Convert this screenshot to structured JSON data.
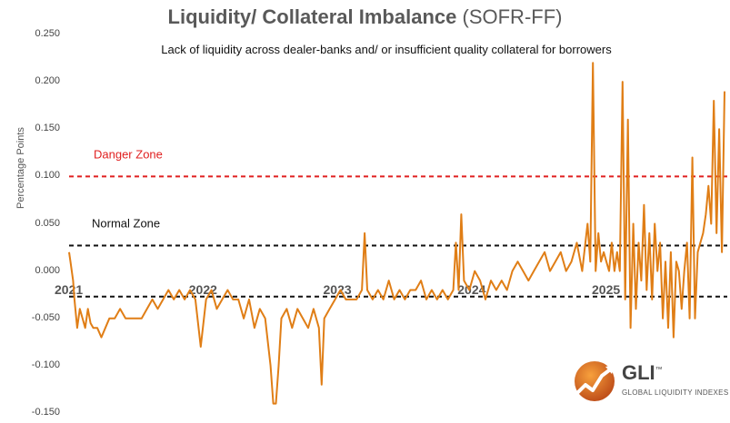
{
  "title": {
    "bold": "Liquidity/ Collateral Imbalance",
    "normal": "(SOFR-FF)"
  },
  "subtitle": "Lack of liquidity across dealer-banks and/ or insufficient quality collateral for borrowers",
  "colors": {
    "series": "#e07e16",
    "danger": "#e02020",
    "normal": "#111111"
  },
  "logo": {
    "name": "GLI",
    "tm": "™",
    "tagline": "GLOBAL LIQUIDITY INDEXES"
  },
  "chart_data": {
    "type": "line",
    "title": "Liquidity/ Collateral Imbalance (SOFR-FF)",
    "subtitle": "Lack of liquidity across dealer-banks and/ or insufficient quality collateral for borrowers",
    "ylabel": "Percentage Points",
    "xlabel": "",
    "ylim": [
      -0.15,
      0.25
    ],
    "xlim": [
      2021.0,
      2025.9
    ],
    "y_ticks": [
      "0.250",
      "0.200",
      "0.150",
      "0.100",
      "0.050",
      "0.000",
      "-0.050",
      "-0.100",
      "-0.150"
    ],
    "x_ticks": [
      "2021",
      "2022",
      "2023",
      "2024",
      "2025"
    ],
    "grid": false,
    "legend": "none",
    "reference_lines": [
      {
        "label": "Danger Zone",
        "y": 0.1,
        "style": "dashed",
        "color": "#e02020"
      },
      {
        "label": "Normal Zone",
        "y": 0.027,
        "style": "dashed",
        "color": "#111111"
      },
      {
        "label": "",
        "y": -0.027,
        "style": "dashed",
        "color": "#111111"
      }
    ],
    "series": [
      {
        "values_x": [
          2021.0,
          2021.01,
          2021.03,
          2021.04,
          2021.06,
          2021.08,
          2021.1,
          2021.12,
          2021.14,
          2021.16,
          2021.18,
          2021.21,
          2021.24,
          2021.27,
          2021.3,
          2021.34,
          2021.38,
          2021.42,
          2021.46,
          2021.5,
          2021.54,
          2021.58,
          2021.62,
          2021.66,
          2021.7,
          2021.74,
          2021.78,
          2021.82,
          2021.86,
          2021.9,
          2021.94,
          2021.98,
          2022.02,
          2022.06,
          2022.1,
          2022.14,
          2022.18,
          2022.22,
          2022.26,
          2022.3,
          2022.34,
          2022.38,
          2022.42,
          2022.46,
          2022.5,
          2022.52,
          2022.54,
          2022.56,
          2022.58,
          2022.62,
          2022.66,
          2022.7,
          2022.74,
          2022.78,
          2022.82,
          2022.86,
          2022.88,
          2022.9,
          2022.94,
          2022.98,
          2023.02,
          2023.06,
          2023.1,
          2023.14,
          2023.18,
          2023.2,
          2023.22,
          2023.26,
          2023.3,
          2023.34,
          2023.38,
          2023.42,
          2023.46,
          2023.5,
          2023.54,
          2023.58,
          2023.62,
          2023.66,
          2023.7,
          2023.74,
          2023.78,
          2023.82,
          2023.86,
          2023.88,
          2023.9,
          2023.92,
          2023.94,
          2023.98,
          2024.02,
          2024.06,
          2024.1,
          2024.14,
          2024.18,
          2024.22,
          2024.26,
          2024.3,
          2024.34,
          2024.38,
          2024.42,
          2024.46,
          2024.5,
          2024.54,
          2024.58,
          2024.62,
          2024.66,
          2024.7,
          2024.74,
          2024.78,
          2024.82,
          2024.86,
          2024.88,
          2024.9,
          2024.92,
          2024.94,
          2024.96,
          2024.98,
          2025.0,
          2025.02,
          2025.04,
          2025.06,
          2025.08,
          2025.1,
          2025.12,
          2025.14,
          2025.16,
          2025.18,
          2025.2,
          2025.22,
          2025.24,
          2025.26,
          2025.28,
          2025.3,
          2025.32,
          2025.34,
          2025.36,
          2025.38,
          2025.4,
          2025.42,
          2025.44,
          2025.46,
          2025.48,
          2025.5,
          2025.52,
          2025.54,
          2025.56,
          2025.58,
          2025.6,
          2025.62,
          2025.64,
          2025.66,
          2025.68,
          2025.7,
          2025.72,
          2025.74,
          2025.76,
          2025.78,
          2025.8,
          2025.82,
          2025.84,
          2025.86,
          2025.88
        ],
        "values": [
          0.02,
          0.01,
          -0.01,
          -0.03,
          -0.06,
          -0.04,
          -0.05,
          -0.06,
          -0.04,
          -0.055,
          -0.06,
          -0.06,
          -0.07,
          -0.06,
          -0.05,
          -0.05,
          -0.04,
          -0.05,
          -0.05,
          -0.05,
          -0.05,
          -0.04,
          -0.03,
          -0.04,
          -0.03,
          -0.02,
          -0.03,
          -0.02,
          -0.03,
          -0.02,
          -0.03,
          -0.08,
          -0.03,
          -0.02,
          -0.04,
          -0.03,
          -0.02,
          -0.03,
          -0.03,
          -0.05,
          -0.03,
          -0.06,
          -0.04,
          -0.05,
          -0.1,
          -0.14,
          -0.14,
          -0.1,
          -0.05,
          -0.04,
          -0.06,
          -0.04,
          -0.05,
          -0.06,
          -0.04,
          -0.06,
          -0.12,
          -0.05,
          -0.04,
          -0.03,
          -0.02,
          -0.03,
          -0.03,
          -0.03,
          -0.02,
          0.04,
          -0.02,
          -0.03,
          -0.02,
          -0.03,
          -0.01,
          -0.03,
          -0.02,
          -0.03,
          -0.02,
          -0.02,
          -0.01,
          -0.03,
          -0.02,
          -0.03,
          -0.02,
          -0.03,
          -0.02,
          0.03,
          -0.02,
          0.06,
          -0.01,
          -0.02,
          0.0,
          -0.01,
          -0.03,
          -0.01,
          -0.02,
          -0.01,
          -0.02,
          0.0,
          0.01,
          0.0,
          -0.01,
          0.0,
          0.01,
          0.02,
          0.0,
          0.01,
          0.02,
          0.0,
          0.01,
          0.03,
          0.0,
          0.05,
          0.01,
          0.22,
          0.0,
          0.04,
          0.01,
          0.02,
          0.01,
          0.0,
          0.03,
          0.0,
          0.02,
          0.0,
          0.2,
          -0.03,
          0.16,
          -0.06,
          0.05,
          -0.04,
          0.03,
          -0.01,
          0.07,
          -0.02,
          0.04,
          -0.03,
          0.05,
          0.0,
          0.03,
          -0.05,
          0.01,
          -0.06,
          0.02,
          -0.07,
          0.01,
          0.0,
          -0.04,
          0.0,
          0.03,
          -0.05,
          0.12,
          -0.05,
          0.02,
          0.03,
          0.04,
          0.06,
          0.09,
          0.05,
          0.18,
          0.04,
          0.15,
          0.02,
          0.19
        ],
        "color": "#e07e16"
      }
    ]
  }
}
